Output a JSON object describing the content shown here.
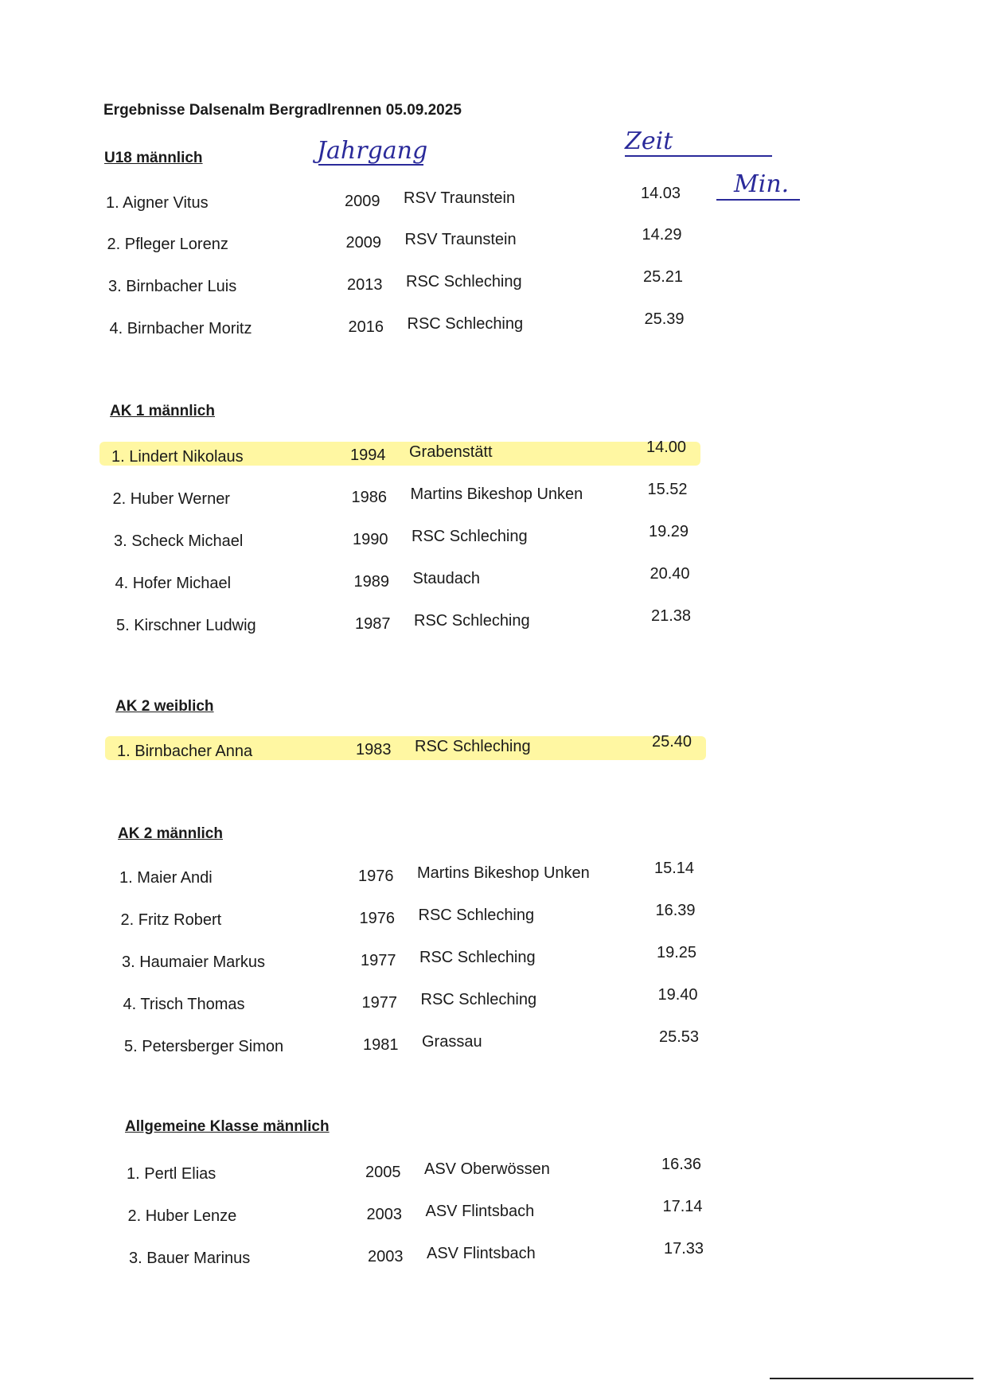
{
  "title": "Ergebnisse Dalsenalm Bergradlrennen 05.09.2025",
  "handwritten": {
    "year_label": "Jahrgang",
    "time_label": "Zeit",
    "unit_label": "Min."
  },
  "highlight_color": "#fff050",
  "sections": [
    {
      "heading": "U18 männlich",
      "rows": [
        {
          "name": "1. Aigner Vitus",
          "year": "2009",
          "club": "RSV Traunstein",
          "time": "14.03"
        },
        {
          "name": "2. Pfleger Lorenz",
          "year": "2009",
          "club": "RSV Traunstein",
          "time": "14.29"
        },
        {
          "name": "3. Birnbacher Luis",
          "year": "2013",
          "club": "RSC Schleching",
          "time": "25.21"
        },
        {
          "name": "4. Birnbacher Moritz",
          "year": "2016",
          "club": "RSC Schleching",
          "time": "25.39"
        }
      ]
    },
    {
      "heading": "AK 1 männlich",
      "rows": [
        {
          "name": "1. Lindert Nikolaus",
          "year": "1994",
          "club": "Grabenstätt",
          "time": "14.00",
          "highlighted": true
        },
        {
          "name": "2. Huber Werner",
          "year": "1986",
          "club": "Martins Bikeshop Unken",
          "time": "15.52"
        },
        {
          "name": "3. Scheck Michael",
          "year": "1990",
          "club": "RSC Schleching",
          "time": "19.29"
        },
        {
          "name": "4. Hofer Michael",
          "year": "1989",
          "club": "Staudach",
          "time": "20.40"
        },
        {
          "name": "5. Kirschner Ludwig",
          "year": "1987",
          "club": "RSC Schleching",
          "time": "21.38"
        }
      ]
    },
    {
      "heading": "AK 2 weiblich",
      "rows": [
        {
          "name": "1. Birnbacher Anna",
          "year": "1983",
          "club": "RSC Schleching",
          "time": "25.40",
          "highlighted": true
        }
      ]
    },
    {
      "heading": "AK 2 männlich",
      "rows": [
        {
          "name": "1. Maier Andi",
          "year": "1976",
          "club": "Martins Bikeshop Unken",
          "time": "15.14"
        },
        {
          "name": "2. Fritz Robert",
          "year": "1976",
          "club": "RSC Schleching",
          "time": "16.39"
        },
        {
          "name": "3. Haumaier Markus",
          "year": "1977",
          "club": "RSC Schleching",
          "time": "19.25"
        },
        {
          "name": "4. Trisch Thomas",
          "year": "1977",
          "club": "RSC Schleching",
          "time": "19.40"
        },
        {
          "name": "5. Petersberger Simon",
          "year": "1981",
          "club": "Grassau",
          "time": "25.53"
        }
      ]
    },
    {
      "heading": "Allgemeine Klasse männlich",
      "rows": [
        {
          "name": "1. Pertl Elias",
          "year": "2005",
          "club": "ASV Oberwössen",
          "time": "16.36"
        },
        {
          "name": "2. Huber Lenze",
          "year": "2003",
          "club": "ASV Flintsbach",
          "time": "17.14"
        },
        {
          "name": "3. Bauer Marinus",
          "year": "2003",
          "club": "ASV Flintsbach",
          "time": "17.33"
        }
      ]
    }
  ]
}
